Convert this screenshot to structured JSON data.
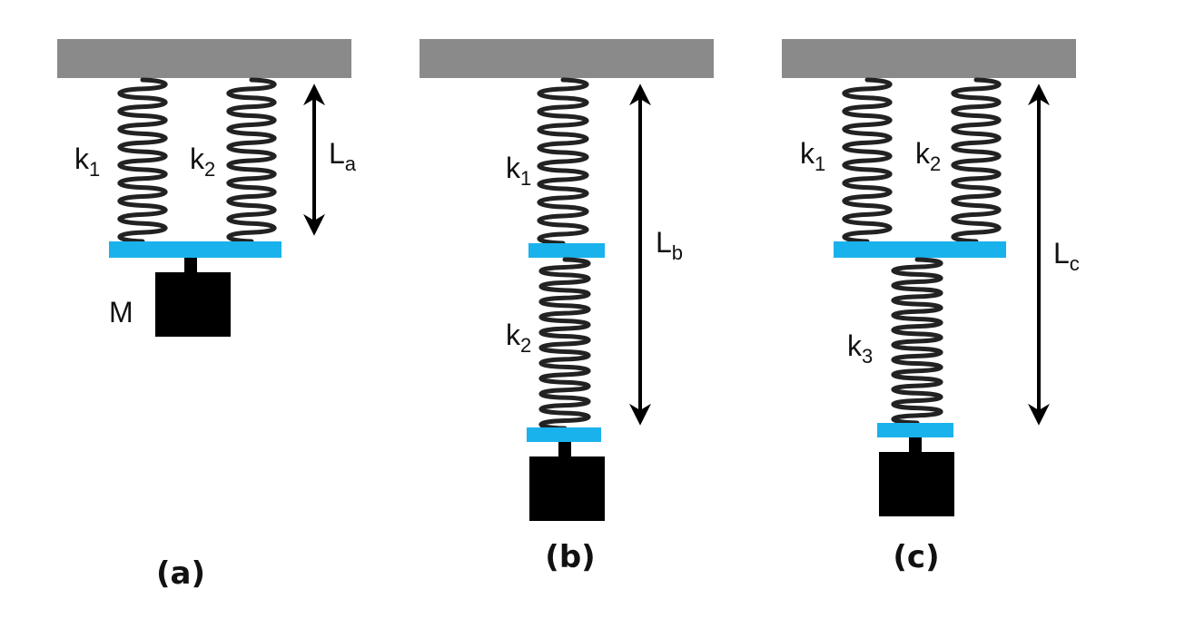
{
  "colors": {
    "ceiling": "#8a8a8a",
    "plate": "#1ab2ec",
    "mass": "#000000",
    "spring": "#222222",
    "arrow": "#000000"
  },
  "panels": [
    {
      "caption": "(a)",
      "springs": [
        {
          "label_main": "k",
          "label_sub": "1"
        },
        {
          "label_main": "k",
          "label_sub": "2"
        }
      ],
      "length_label_main": "L",
      "length_label_sub": "a",
      "mass_label": "M"
    },
    {
      "caption": "(b)",
      "springs": [
        {
          "label_main": "k",
          "label_sub": "1"
        },
        {
          "label_main": "k",
          "label_sub": "2"
        }
      ],
      "length_label_main": "L",
      "length_label_sub": "b"
    },
    {
      "caption": "(c)",
      "springs": [
        {
          "label_main": "k",
          "label_sub": "1"
        },
        {
          "label_main": "k",
          "label_sub": "2"
        },
        {
          "label_main": "k",
          "label_sub": "3"
        }
      ],
      "length_label_main": "L",
      "length_label_sub": "c"
    }
  ]
}
